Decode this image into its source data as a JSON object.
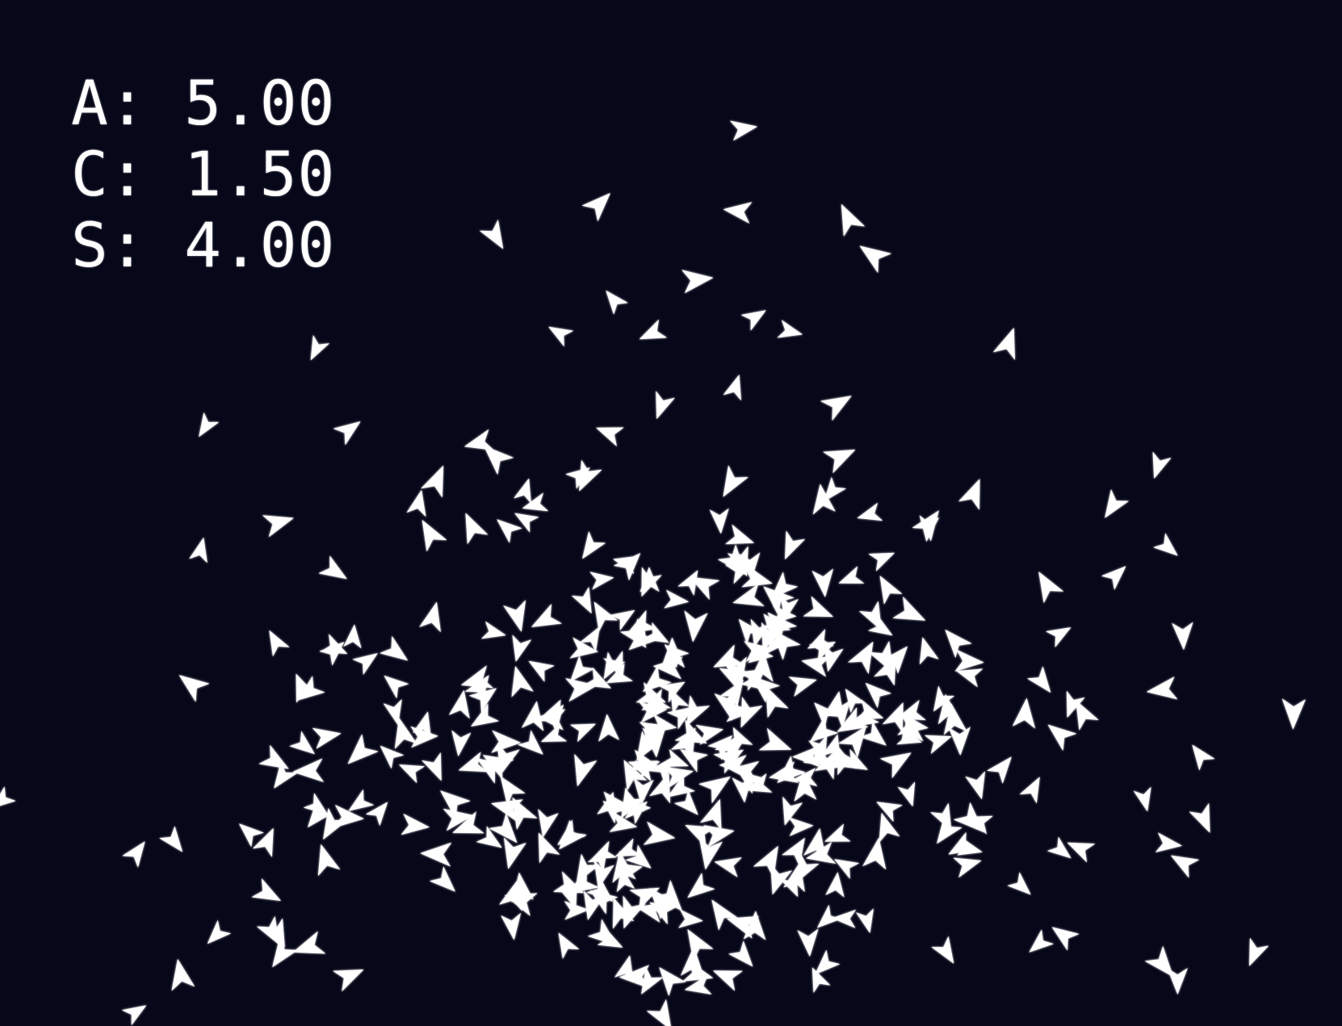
{
  "hud": {
    "lines": [
      {
        "label": "A",
        "value": "5.00"
      },
      {
        "label": "C",
        "value": "1.50"
      },
      {
        "label": "S",
        "value": "4.00"
      }
    ],
    "separator": ": "
  },
  "colors": {
    "background": "#07071a",
    "boid": "#ffffff",
    "glow": "#cfd6ff"
  },
  "icons": {
    "boid": "triangle-arrow-icon"
  }
}
